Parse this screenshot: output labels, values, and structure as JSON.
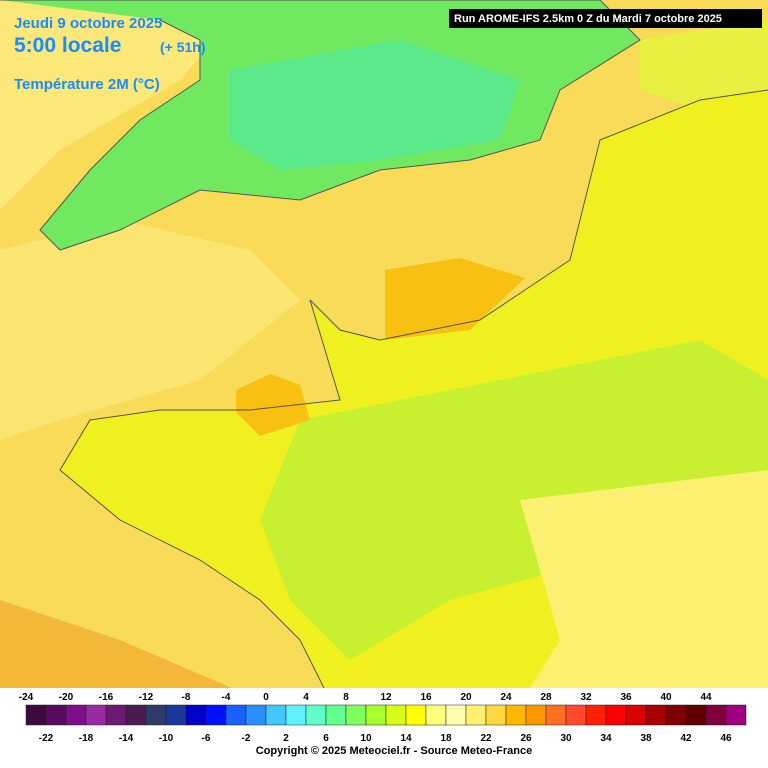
{
  "header": {
    "date": "Jeudi 9 octobre 2025",
    "time": "5:00 locale",
    "lead": "(+ 51h)",
    "parameter": "Température 2M (°C)",
    "run": "Run AROME-IFS 2.5km 0 Z du Mardi 7 octobre 2025"
  },
  "legend": {
    "values": [
      -24,
      -22,
      -20,
      -18,
      -16,
      -14,
      -12,
      -10,
      -8,
      -6,
      -4,
      -2,
      0,
      2,
      4,
      6,
      8,
      10,
      12,
      14,
      16,
      18,
      20,
      22,
      24,
      26,
      28,
      30,
      32,
      34,
      36,
      38,
      40,
      42,
      44,
      46
    ],
    "colors": [
      "#3c0a3c",
      "#5a0a5e",
      "#7c1088",
      "#9a2aa4",
      "#6a1a70",
      "#4a1a50",
      "#303a6a",
      "#1a3a9a",
      "#0000c8",
      "#0010ff",
      "#1a60ff",
      "#2a90ff",
      "#40c8ff",
      "#60f0ff",
      "#60ffc8",
      "#60ff90",
      "#80ff60",
      "#a8ff30",
      "#d8ff18",
      "#ffff00",
      "#ffff80",
      "#ffffb0",
      "#fff070",
      "#ffd840",
      "#ffb800",
      "#ff9800",
      "#ff7020",
      "#ff4a30",
      "#ff2000",
      "#ff0000",
      "#d80000",
      "#a80000",
      "#800000",
      "#600000",
      "#80003c",
      "#a00080"
    ]
  },
  "footer": {
    "copyright": "Copyright © 2025 Meteociel.fr - Source Meteo-France"
  }
}
